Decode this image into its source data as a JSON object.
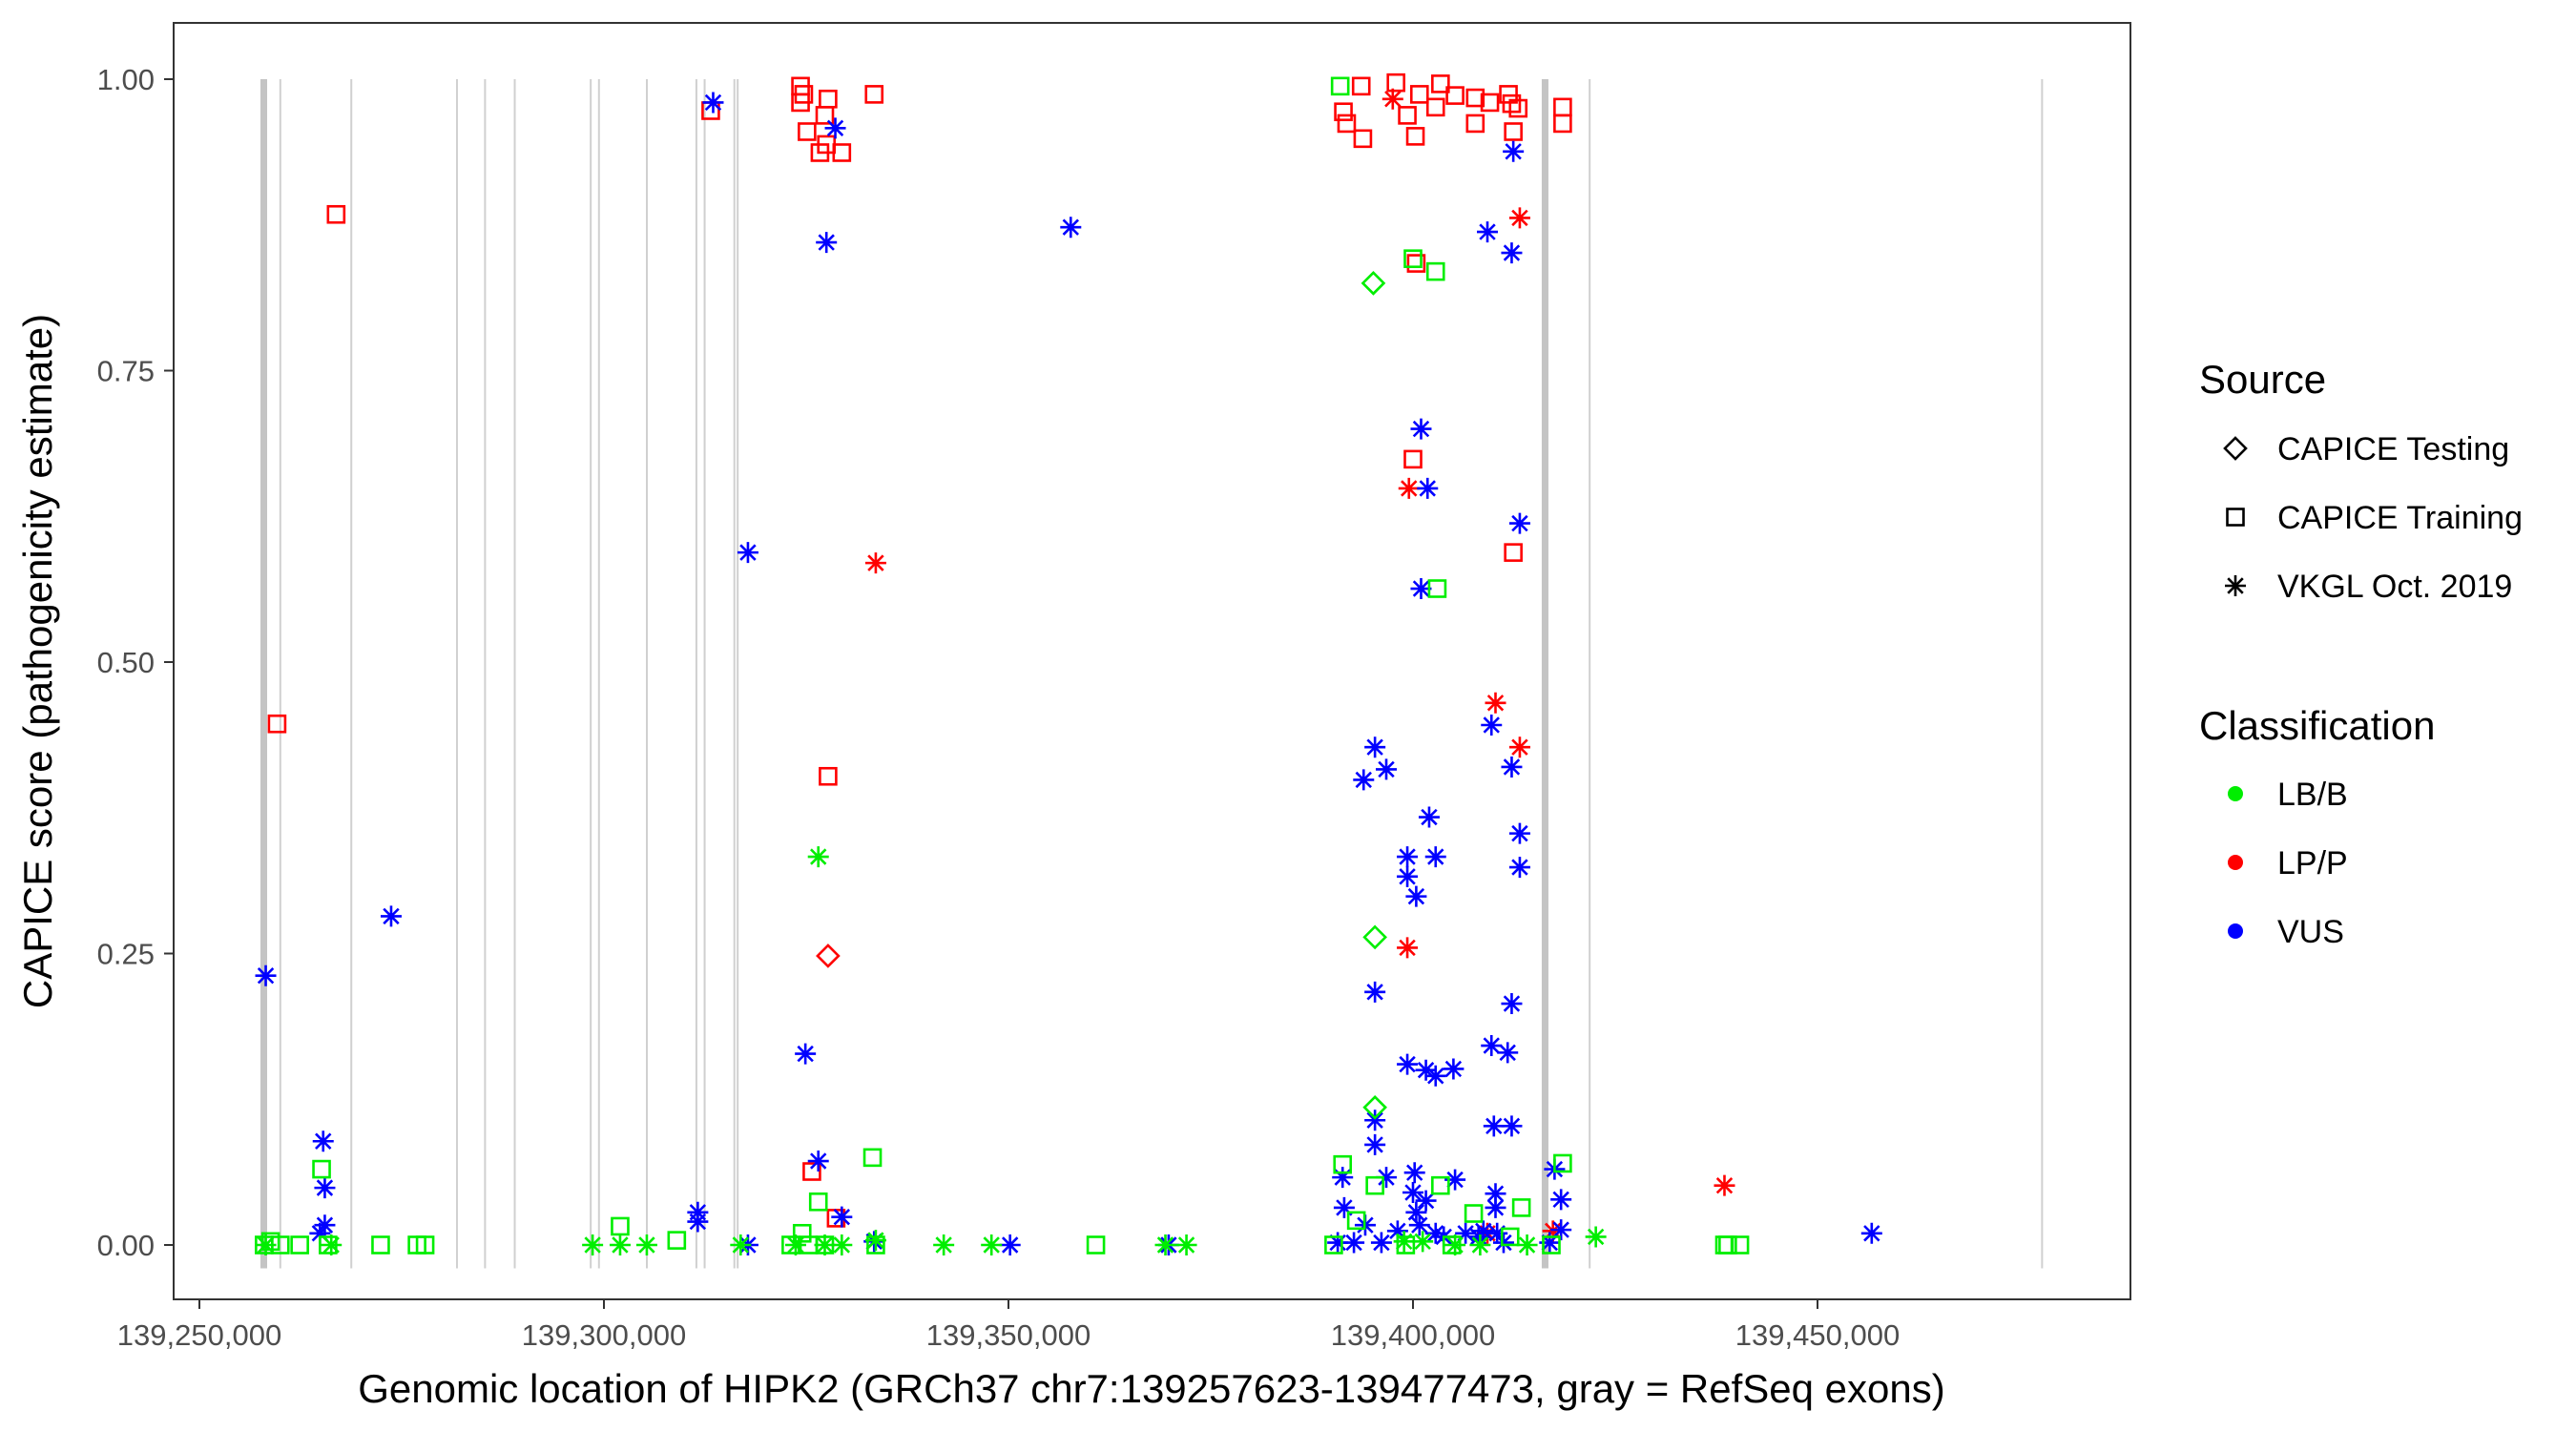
{
  "chart_data": {
    "type": "scatter",
    "xlabel": "Genomic location of HIPK2 (GRCh37 chr7:139257623-139477473, gray = RefSeq exons)",
    "ylabel": "CAPICE score (pathogenicity estimate)",
    "xlim": [
      139246600,
      139487200
    ],
    "ylim": [
      -0.05,
      1.05
    ],
    "x_ticks": [
      139250000,
      139300000,
      139350000,
      139400000,
      139450000
    ],
    "x_tick_labels": [
      "139,250,000",
      "139,300,000",
      "139,350,000",
      "139,400,000",
      "139,450,000"
    ],
    "y_ticks": [
      0,
      0.25,
      0.5,
      0.75,
      1.0
    ],
    "y_tick_labels": [
      "0.00",
      "0.25",
      "0.50",
      "0.75",
      "1.00"
    ],
    "grid": false,
    "exons": [
      139257959,
      139260000,
      139268775,
      139281836,
      139285306,
      139288979,
      139298367,
      139299387,
      139305306,
      139311428,
      139312449,
      139316122,
      139316531,
      139416327,
      139421837,
      139477755
    ],
    "thick_exons": [
      139257959,
      139416327
    ],
    "legend": {
      "placement": "right",
      "source_title": "Source",
      "source_items": [
        {
          "key": "T",
          "label": "CAPICE Testing",
          "shape": "diamond"
        },
        {
          "key": "R",
          "label": "CAPICE Training",
          "shape": "square"
        },
        {
          "key": "V",
          "label": "VKGL Oct. 2019",
          "shape": "asterisk"
        }
      ],
      "class_title": "Classification",
      "class_items": [
        {
          "key": "LB",
          "label": "LB/B",
          "color": "#00ee00"
        },
        {
          "key": "LP",
          "label": "LP/P",
          "color": "#ff0000"
        },
        {
          "key": "VUS",
          "label": "VUS",
          "color": "#0000ff"
        }
      ]
    },
    "points_columns": [
      "position",
      "score",
      "source",
      "classification"
    ],
    "points": [
      [
        139266900,
        0.884,
        "R",
        "LP"
      ],
      [
        139259600,
        0.447,
        "R",
        "LP"
      ],
      [
        139313200,
        0.973,
        "R",
        "LP"
      ],
      [
        139324300,
        0.994,
        "R",
        "LP"
      ],
      [
        139324700,
        0.987,
        "R",
        "LP"
      ],
      [
        139324300,
        0.98,
        "R",
        "LP"
      ],
      [
        139325100,
        0.955,
        "R",
        "LP"
      ],
      [
        139326700,
        0.937,
        "R",
        "LP"
      ],
      [
        139327700,
        0.983,
        "R",
        "LP"
      ],
      [
        139327300,
        0.969,
        "R",
        "LP"
      ],
      [
        139327500,
        0.944,
        "R",
        "LP"
      ],
      [
        139329400,
        0.937,
        "R",
        "LP"
      ],
      [
        139333400,
        0.987,
        "R",
        "LP"
      ],
      [
        139327700,
        0.402,
        "R",
        "LP"
      ],
      [
        139325700,
        0.063,
        "R",
        "LP"
      ],
      [
        139328700,
        0.023,
        "R",
        "LP"
      ],
      [
        139391400,
        0.972,
        "R",
        "LP"
      ],
      [
        139391800,
        0.962,
        "R",
        "LP"
      ],
      [
        139393600,
        0.994,
        "R",
        "LP"
      ],
      [
        139393800,
        0.949,
        "R",
        "LP"
      ],
      [
        139397900,
        0.997,
        "R",
        "LP"
      ],
      [
        139399300,
        0.969,
        "R",
        "LP"
      ],
      [
        139400300,
        0.951,
        "R",
        "LP"
      ],
      [
        139400800,
        0.987,
        "R",
        "LP"
      ],
      [
        139402800,
        0.976,
        "R",
        "LP"
      ],
      [
        139403400,
        0.996,
        "R",
        "LP"
      ],
      [
        139405200,
        0.986,
        "R",
        "LP"
      ],
      [
        139407700,
        0.984,
        "R",
        "LP"
      ],
      [
        139407700,
        0.962,
        "R",
        "LP"
      ],
      [
        139409500,
        0.98,
        "R",
        "LP"
      ],
      [
        139411800,
        0.987,
        "R",
        "LP"
      ],
      [
        139412200,
        0.979,
        "R",
        "LP"
      ],
      [
        139412400,
        0.955,
        "R",
        "LP"
      ],
      [
        139413000,
        0.975,
        "R",
        "LP"
      ],
      [
        139418500,
        0.976,
        "R",
        "LP"
      ],
      [
        139418500,
        0.962,
        "R",
        "LP"
      ],
      [
        139400000,
        0.674,
        "R",
        "LP"
      ],
      [
        139400400,
        0.842,
        "R",
        "LP"
      ],
      [
        139412400,
        0.594,
        "R",
        "LP"
      ],
      [
        139327700,
        0.248,
        "T",
        "LP"
      ],
      [
        139333600,
        0.585,
        "V",
        "LP"
      ],
      [
        139397500,
        0.983,
        "V",
        "LP"
      ],
      [
        139399500,
        0.649,
        "V",
        "LP"
      ],
      [
        139413200,
        0.881,
        "V",
        "LP"
      ],
      [
        139410200,
        0.465,
        "V",
        "LP"
      ],
      [
        139413200,
        0.427,
        "V",
        "LP"
      ],
      [
        139399300,
        0.255,
        "V",
        "LP"
      ],
      [
        139438500,
        0.051,
        "V",
        "LP"
      ],
      [
        139409200,
        0.01,
        "V",
        "LP"
      ],
      [
        139417300,
        0.012,
        "V",
        "LP"
      ],
      [
        139258200,
        0.231,
        "V",
        "VUS"
      ],
      [
        139273700,
        0.282,
        "V",
        "VUS"
      ],
      [
        139265300,
        0.089,
        "V",
        "VUS"
      ],
      [
        139265500,
        0.049,
        "V",
        "VUS"
      ],
      [
        139265500,
        0.017,
        "V",
        "VUS"
      ],
      [
        139264900,
        0.01,
        "V",
        "VUS"
      ],
      [
        139313500,
        0.98,
        "V",
        "VUS"
      ],
      [
        139317800,
        0.594,
        "V",
        "VUS"
      ],
      [
        139317800,
        0.0,
        "V",
        "VUS"
      ],
      [
        139311600,
        0.028,
        "V",
        "VUS"
      ],
      [
        139311600,
        0.02,
        "V",
        "VUS"
      ],
      [
        139324900,
        0.164,
        "V",
        "VUS"
      ],
      [
        139326500,
        0.072,
        "V",
        "VUS"
      ],
      [
        139327500,
        0.86,
        "V",
        "VUS"
      ],
      [
        139328600,
        0.958,
        "V",
        "VUS"
      ],
      [
        139329400,
        0.024,
        "V",
        "VUS"
      ],
      [
        139333400,
        0.003,
        "V",
        "VUS"
      ],
      [
        139350200,
        0.0,
        "V",
        "VUS"
      ],
      [
        139357700,
        0.873,
        "V",
        "VUS"
      ],
      [
        139369800,
        0.0,
        "V",
        "VUS"
      ],
      [
        139409200,
        0.869,
        "V",
        "VUS"
      ],
      [
        139412200,
        0.851,
        "V",
        "VUS"
      ],
      [
        139412400,
        0.938,
        "V",
        "VUS"
      ],
      [
        139401000,
        0.7,
        "V",
        "VUS"
      ],
      [
        139401800,
        0.649,
        "V",
        "VUS"
      ],
      [
        139413200,
        0.619,
        "V",
        "VUS"
      ],
      [
        139401000,
        0.563,
        "V",
        "VUS"
      ],
      [
        139409700,
        0.446,
        "V",
        "VUS"
      ],
      [
        139412200,
        0.41,
        "V",
        "VUS"
      ],
      [
        139395300,
        0.427,
        "V",
        "VUS"
      ],
      [
        139393900,
        0.399,
        "V",
        "VUS"
      ],
      [
        139396700,
        0.408,
        "V",
        "VUS"
      ],
      [
        139402000,
        0.367,
        "V",
        "VUS"
      ],
      [
        139399300,
        0.333,
        "V",
        "VUS"
      ],
      [
        139402800,
        0.333,
        "V",
        "VUS"
      ],
      [
        139413200,
        0.353,
        "V",
        "VUS"
      ],
      [
        139413200,
        0.324,
        "V",
        "VUS"
      ],
      [
        139399300,
        0.316,
        "V",
        "VUS"
      ],
      [
        139400400,
        0.299,
        "V",
        "VUS"
      ],
      [
        139395300,
        0.217,
        "V",
        "VUS"
      ],
      [
        139412200,
        0.207,
        "V",
        "VUS"
      ],
      [
        139409700,
        0.171,
        "V",
        "VUS"
      ],
      [
        139411700,
        0.165,
        "V",
        "VUS"
      ],
      [
        139399300,
        0.155,
        "V",
        "VUS"
      ],
      [
        139401600,
        0.15,
        "V",
        "VUS"
      ],
      [
        139402800,
        0.145,
        "V",
        "VUS"
      ],
      [
        139405000,
        0.151,
        "V",
        "VUS"
      ],
      [
        139395300,
        0.107,
        "V",
        "VUS"
      ],
      [
        139395300,
        0.086,
        "V",
        "VUS"
      ],
      [
        139410000,
        0.102,
        "V",
        "VUS"
      ],
      [
        139412200,
        0.102,
        "V",
        "VUS"
      ],
      [
        139391300,
        0.058,
        "V",
        "VUS"
      ],
      [
        139391500,
        0.032,
        "V",
        "VUS"
      ],
      [
        139396700,
        0.058,
        "V",
        "VUS"
      ],
      [
        139400200,
        0.062,
        "V",
        "VUS"
      ],
      [
        139400000,
        0.045,
        "V",
        "VUS"
      ],
      [
        139400400,
        0.028,
        "V",
        "VUS"
      ],
      [
        139401600,
        0.038,
        "V",
        "VUS"
      ],
      [
        139405200,
        0.056,
        "V",
        "VUS"
      ],
      [
        139410200,
        0.044,
        "V",
        "VUS"
      ],
      [
        139410200,
        0.032,
        "V",
        "VUS"
      ],
      [
        139417500,
        0.065,
        "V",
        "VUS"
      ],
      [
        139418300,
        0.039,
        "V",
        "VUS"
      ],
      [
        139418300,
        0.013,
        "V",
        "VUS"
      ],
      [
        139400800,
        0.017,
        "V",
        "VUS"
      ],
      [
        139402800,
        0.01,
        "V",
        "VUS"
      ],
      [
        139456700,
        0.01,
        "V",
        "VUS"
      ],
      [
        139390700,
        0.002,
        "V",
        "VUS"
      ],
      [
        139392700,
        0.002,
        "V",
        "VUS"
      ],
      [
        139396100,
        0.002,
        "V",
        "VUS"
      ],
      [
        139398100,
        0.012,
        "V",
        "VUS"
      ],
      [
        139403800,
        0.007,
        "V",
        "VUS"
      ],
      [
        139406500,
        0.01,
        "V",
        "VUS"
      ],
      [
        139408100,
        0.007,
        "V",
        "VUS"
      ],
      [
        139408700,
        0.012,
        "V",
        "VUS"
      ],
      [
        139410400,
        0.01,
        "V",
        "VUS"
      ],
      [
        139411200,
        0.002,
        "V",
        "VUS"
      ],
      [
        139416900,
        0.002,
        "V",
        "VUS"
      ],
      [
        139394100,
        0.017,
        "V",
        "VUS"
      ],
      [
        139258800,
        0.003,
        "R",
        "LB"
      ],
      [
        139258000,
        0.0,
        "R",
        "LB"
      ],
      [
        139260000,
        0.0,
        "R",
        "LB"
      ],
      [
        139262400,
        0.0,
        "R",
        "LB"
      ],
      [
        139265900,
        0.0,
        "R",
        "LB"
      ],
      [
        139272400,
        0.0,
        "R",
        "LB"
      ],
      [
        139276900,
        0.0,
        "R",
        "LB"
      ],
      [
        139277900,
        0.0,
        "R",
        "LB"
      ],
      [
        139302000,
        0.016,
        "R",
        "LB"
      ],
      [
        139309000,
        0.004,
        "R",
        "LB"
      ],
      [
        139265100,
        0.065,
        "R",
        "LB"
      ],
      [
        139323100,
        0.0,
        "R",
        "LB"
      ],
      [
        139324500,
        0.01,
        "R",
        "LB"
      ],
      [
        139325300,
        0.0,
        "R",
        "LB"
      ],
      [
        139326500,
        0.037,
        "R",
        "LB"
      ],
      [
        139327300,
        0.0,
        "R",
        "LB"
      ],
      [
        139333200,
        0.075,
        "R",
        "LB"
      ],
      [
        139333600,
        0.0,
        "R",
        "LB"
      ],
      [
        139360800,
        0.0,
        "R",
        "LB"
      ],
      [
        139391000,
        0.994,
        "R",
        "LB"
      ],
      [
        139400000,
        0.846,
        "R",
        "LB"
      ],
      [
        139402800,
        0.835,
        "R",
        "LB"
      ],
      [
        139403000,
        0.563,
        "R",
        "LB"
      ],
      [
        139391300,
        0.069,
        "R",
        "LB"
      ],
      [
        139393000,
        0.021,
        "R",
        "LB"
      ],
      [
        139395300,
        0.051,
        "R",
        "LB"
      ],
      [
        139403400,
        0.051,
        "R",
        "LB"
      ],
      [
        139407500,
        0.027,
        "R",
        "LB"
      ],
      [
        139413400,
        0.032,
        "R",
        "LB"
      ],
      [
        139418500,
        0.07,
        "R",
        "LB"
      ],
      [
        139438500,
        0.0,
        "R",
        "LB"
      ],
      [
        139440400,
        0.0,
        "R",
        "LB"
      ],
      [
        139390200,
        0.0,
        "R",
        "LB"
      ],
      [
        139399100,
        0.0,
        "R",
        "LB"
      ],
      [
        139404800,
        0.0,
        "R",
        "LB"
      ],
      [
        139412000,
        0.007,
        "R",
        "LB"
      ],
      [
        139417100,
        0.0,
        "R",
        "LB"
      ],
      [
        139438900,
        0.0,
        "R",
        "LB"
      ],
      [
        139395100,
        0.825,
        "T",
        "LB"
      ],
      [
        139395300,
        0.264,
        "T",
        "LB"
      ],
      [
        139395300,
        0.118,
        "T",
        "LB"
      ],
      [
        139326500,
        0.333,
        "V",
        "LB"
      ],
      [
        139298600,
        0.0,
        "V",
        "LB"
      ],
      [
        139302000,
        0.0,
        "V",
        "LB"
      ],
      [
        139305300,
        0.0,
        "V",
        "LB"
      ],
      [
        139316900,
        0.0,
        "V",
        "LB"
      ],
      [
        139342000,
        0.0,
        "V",
        "LB"
      ],
      [
        139347900,
        0.0,
        "V",
        "LB"
      ],
      [
        139369400,
        0.0,
        "V",
        "LB"
      ],
      [
        139372000,
        0.0,
        "V",
        "LB"
      ],
      [
        139422600,
        0.007,
        "V",
        "LB"
      ],
      [
        139323700,
        0.0,
        "V",
        "LB"
      ],
      [
        139327300,
        0.0,
        "V",
        "LB"
      ],
      [
        139329400,
        0.0,
        "V",
        "LB"
      ],
      [
        139333600,
        0.004,
        "V",
        "LB"
      ],
      [
        139398900,
        0.003,
        "V",
        "LB"
      ],
      [
        139401200,
        0.003,
        "V",
        "LB"
      ],
      [
        139405200,
        0.0,
        "V",
        "LB"
      ],
      [
        139408300,
        0.0,
        "V",
        "LB"
      ],
      [
        139414100,
        0.0,
        "V",
        "LB"
      ],
      [
        139258200,
        0.0,
        "V",
        "LB"
      ],
      [
        139266300,
        0.0,
        "V",
        "LB"
      ]
    ]
  }
}
